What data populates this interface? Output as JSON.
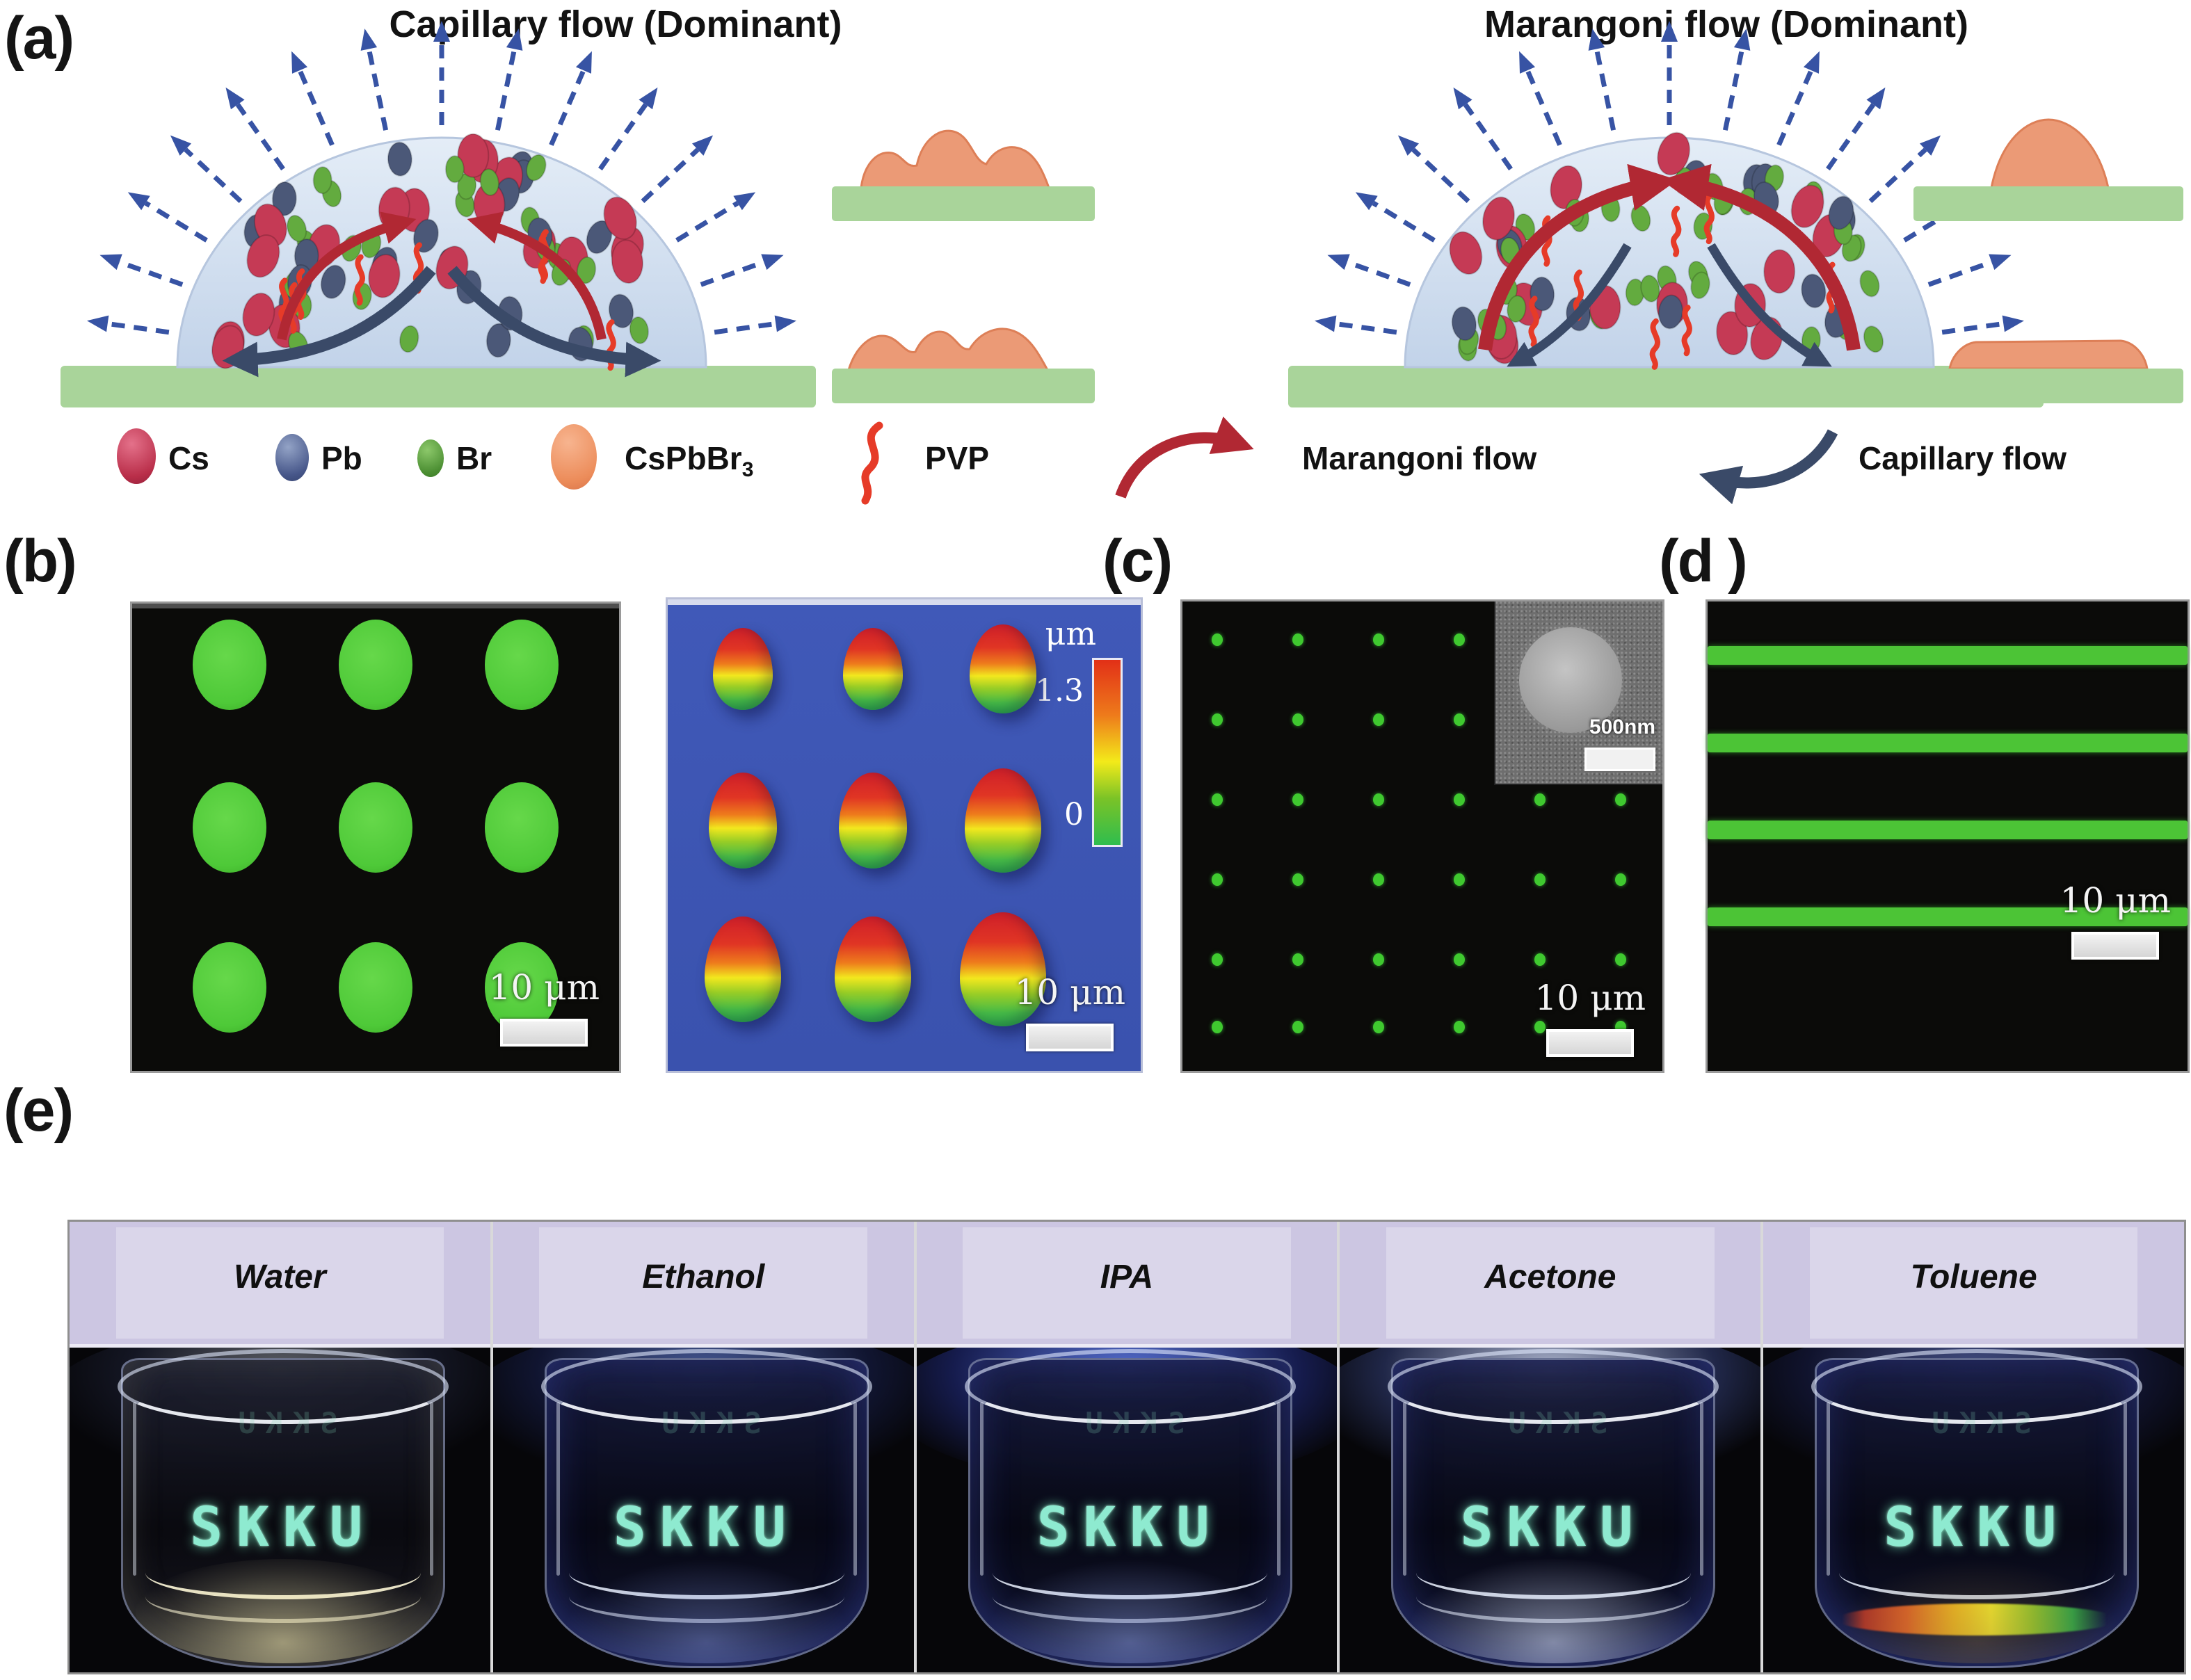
{
  "figure": {
    "panel_a": {
      "label": "(a)",
      "capillary_title": "Capillary flow (Dominant)",
      "marangoni_title": "Marangoni flow (Dominant)",
      "legend": {
        "cs": "Cs",
        "pb": "Pb",
        "br": "Br",
        "cspbbr_main": "CsPbBr",
        "cspbbr_sub": "3",
        "pvp": "PVP",
        "marangoni_flow": "Marangoni flow",
        "capillary_flow": "Capillary flow"
      },
      "colors": {
        "evaporation_arrow": "#3753a4",
        "marangoni_arrow": "#b12833",
        "capillary_arrow": "#3a4a68",
        "droplet_top": "#e4edf7",
        "droplet_bottom": "#c2d3e9",
        "substrate": "#a9d49a",
        "film": "#eb9a76",
        "cs_particle": "#c53a55",
        "pb_particle": "#4b5878",
        "br_particle": "#63ab3f",
        "cspbbr3_particle": "#f09a6d",
        "pvp_strand": "#e63b28"
      }
    },
    "panel_b": {
      "label": "(b)",
      "scale_bar": "10 μm",
      "grid_rows": 3,
      "grid_cols": 3,
      "dot_color": "#4ec938",
      "height_map_bg": "#3c55b2",
      "colorbar": {
        "unit": "μm",
        "max": "1.3",
        "min": "0"
      }
    },
    "panel_c": {
      "label": "(c)",
      "scale_bar": "10 μm",
      "grid_rows": 6,
      "grid_cols": 6,
      "dot_color": "#3fc92f",
      "inset_scale": "500nm"
    },
    "panel_d": {
      "label": "(d )",
      "scale_bar": "10 μm",
      "stripe_count": 4,
      "stripe_color": "#4cc436"
    },
    "panel_e": {
      "label": "(e)",
      "glass_text": "SKKU",
      "glow_color": "#8eead0",
      "band_color": "#ccc6e2",
      "solvents": [
        {
          "name": "Water"
        },
        {
          "name": "Ethanol"
        },
        {
          "name": "IPA"
        },
        {
          "name": "Acetone"
        },
        {
          "name": "Toluene"
        }
      ]
    }
  }
}
